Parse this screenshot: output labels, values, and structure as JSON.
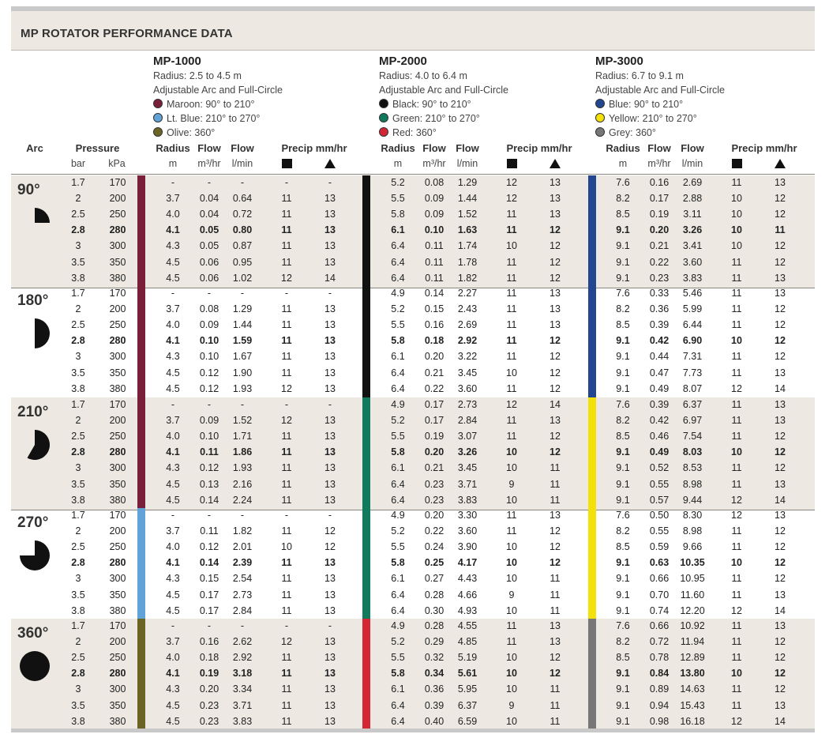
{
  "title": "MP ROTATOR PERFORMANCE DATA",
  "models": [
    {
      "name": "MP-1000",
      "radius": "Radius: 2.5 to 4.5 m",
      "arc": "Adjustable Arc and Full-Circle",
      "colors": [
        {
          "label": "Maroon: 90° to 210°",
          "hex": "#7a1f3a"
        },
        {
          "label": "Lt. Blue: 210° to 270°",
          "hex": "#5fa3d8"
        },
        {
          "label": "Olive: 360°",
          "hex": "#6b6425"
        }
      ]
    },
    {
      "name": "MP-2000",
      "radius": "Radius: 4.0 to 6.4 m",
      "arc": "Adjustable Arc and Full-Circle",
      "colors": [
        {
          "label": "Black: 90° to 210°",
          "hex": "#111111"
        },
        {
          "label": "Green: 210° to 270°",
          "hex": "#0f7a5c"
        },
        {
          "label": "Red: 360°",
          "hex": "#d42535"
        }
      ]
    },
    {
      "name": "MP-3000",
      "radius": "Radius: 6.7 to 9.1 m",
      "arc": "Adjustable Arc and Full-Circle",
      "colors": [
        {
          "label": "Blue: 90° to 210°",
          "hex": "#22468f"
        },
        {
          "label": "Yellow: 210° to 270°",
          "hex": "#f4e00a"
        },
        {
          "label": "Grey: 360°",
          "hex": "#777777"
        }
      ]
    }
  ],
  "headers": {
    "arc": "Arc",
    "pressure": "Pressure",
    "bar": "bar",
    "kpa": "kPa",
    "radius": "Radius",
    "radius_unit": "m",
    "flow": "Flow",
    "flow_m3_unit": "m³/hr",
    "flow_l_unit": "l/min",
    "precip": "Precip mm/hr"
  },
  "bar_colors": [
    [
      "#7a1f3a",
      "#111111",
      "#22468f"
    ],
    [
      "#7a1f3a",
      "#111111",
      "#22468f"
    ],
    [
      "#7a1f3a",
      "#0f7a5c",
      "#f4e00a"
    ],
    [
      "#5fa3d8",
      "#0f7a5c",
      "#f4e00a"
    ],
    [
      "#6b6425",
      "#d42535",
      "#777777"
    ]
  ],
  "pressures": [
    [
      "1.7",
      "170"
    ],
    [
      "2",
      "200"
    ],
    [
      "2.5",
      "250"
    ],
    [
      "2.8",
      "280"
    ],
    [
      "3",
      "300"
    ],
    [
      "3.5",
      "350"
    ],
    [
      "3.8",
      "380"
    ]
  ],
  "groups": [
    {
      "arc": "90°",
      "icon": "quarter-circle-icon",
      "rows": [
        [
          "-",
          "-",
          "-",
          "-",
          "-",
          "5.2",
          "0.08",
          "1.29",
          "12",
          "13",
          "7.6",
          "0.16",
          "2.69",
          "11",
          "13"
        ],
        [
          "3.7",
          "0.04",
          "0.64",
          "11",
          "13",
          "5.5",
          "0.09",
          "1.44",
          "12",
          "13",
          "8.2",
          "0.17",
          "2.88",
          "10",
          "12"
        ],
        [
          "4.0",
          "0.04",
          "0.72",
          "11",
          "13",
          "5.8",
          "0.09",
          "1.52",
          "11",
          "13",
          "8.5",
          "0.19",
          "3.11",
          "10",
          "12"
        ],
        [
          "4.1",
          "0.05",
          "0.80",
          "11",
          "13",
          "6.1",
          "0.10",
          "1.63",
          "11",
          "12",
          "9.1",
          "0.20",
          "3.26",
          "10",
          "11"
        ],
        [
          "4.3",
          "0.05",
          "0.87",
          "11",
          "13",
          "6.4",
          "0.11",
          "1.74",
          "10",
          "12",
          "9.1",
          "0.21",
          "3.41",
          "10",
          "12"
        ],
        [
          "4.5",
          "0.06",
          "0.95",
          "11",
          "13",
          "6.4",
          "0.11",
          "1.78",
          "11",
          "12",
          "9.1",
          "0.22",
          "3.60",
          "11",
          "12"
        ],
        [
          "4.5",
          "0.06",
          "1.02",
          "12",
          "14",
          "6.4",
          "0.11",
          "1.82",
          "11",
          "12",
          "9.1",
          "0.23",
          "3.83",
          "11",
          "13"
        ]
      ]
    },
    {
      "arc": "180°",
      "icon": "half-circle-icon",
      "rows": [
        [
          "-",
          "-",
          "-",
          "-",
          "-",
          "4.9",
          "0.14",
          "2.27",
          "11",
          "13",
          "7.6",
          "0.33",
          "5.46",
          "11",
          "13"
        ],
        [
          "3.7",
          "0.08",
          "1.29",
          "11",
          "13",
          "5.2",
          "0.15",
          "2.43",
          "11",
          "13",
          "8.2",
          "0.36",
          "5.99",
          "11",
          "12"
        ],
        [
          "4.0",
          "0.09",
          "1.44",
          "11",
          "13",
          "5.5",
          "0.16",
          "2.69",
          "11",
          "13",
          "8.5",
          "0.39",
          "6.44",
          "11",
          "12"
        ],
        [
          "4.1",
          "0.10",
          "1.59",
          "11",
          "13",
          "5.8",
          "0.18",
          "2.92",
          "11",
          "12",
          "9.1",
          "0.42",
          "6.90",
          "10",
          "12"
        ],
        [
          "4.3",
          "0.10",
          "1.67",
          "11",
          "13",
          "6.1",
          "0.20",
          "3.22",
          "11",
          "12",
          "9.1",
          "0.44",
          "7.31",
          "11",
          "12"
        ],
        [
          "4.5",
          "0.12",
          "1.90",
          "11",
          "13",
          "6.4",
          "0.21",
          "3.45",
          "10",
          "12",
          "9.1",
          "0.47",
          "7.73",
          "11",
          "13"
        ],
        [
          "4.5",
          "0.12",
          "1.93",
          "12",
          "13",
          "6.4",
          "0.22",
          "3.60",
          "11",
          "12",
          "9.1",
          "0.49",
          "8.07",
          "12",
          "14"
        ]
      ]
    },
    {
      "arc": "210°",
      "icon": "seven-twelfths-circle-icon",
      "rows": [
        [
          "-",
          "-",
          "-",
          "-",
          "-",
          "4.9",
          "0.17",
          "2.73",
          "12",
          "14",
          "7.6",
          "0.39",
          "6.37",
          "11",
          "13"
        ],
        [
          "3.7",
          "0.09",
          "1.52",
          "12",
          "13",
          "5.2",
          "0.17",
          "2.84",
          "11",
          "13",
          "8.2",
          "0.42",
          "6.97",
          "11",
          "13"
        ],
        [
          "4.0",
          "0.10",
          "1.71",
          "11",
          "13",
          "5.5",
          "0.19",
          "3.07",
          "11",
          "12",
          "8.5",
          "0.46",
          "7.54",
          "11",
          "12"
        ],
        [
          "4.1",
          "0.11",
          "1.86",
          "11",
          "13",
          "5.8",
          "0.20",
          "3.26",
          "10",
          "12",
          "9.1",
          "0.49",
          "8.03",
          "10",
          "12"
        ],
        [
          "4.3",
          "0.12",
          "1.93",
          "11",
          "13",
          "6.1",
          "0.21",
          "3.45",
          "10",
          "11",
          "9.1",
          "0.52",
          "8.53",
          "11",
          "12"
        ],
        [
          "4.5",
          "0.13",
          "2.16",
          "11",
          "13",
          "6.4",
          "0.23",
          "3.71",
          "9",
          "11",
          "9.1",
          "0.55",
          "8.98",
          "11",
          "13"
        ],
        [
          "4.5",
          "0.14",
          "2.24",
          "11",
          "13",
          "6.4",
          "0.23",
          "3.83",
          "10",
          "11",
          "9.1",
          "0.57",
          "9.44",
          "12",
          "14"
        ]
      ]
    },
    {
      "arc": "270°",
      "icon": "three-quarter-circle-icon",
      "rows": [
        [
          "-",
          "-",
          "-",
          "-",
          "-",
          "4.9",
          "0.20",
          "3.30",
          "11",
          "13",
          "7.6",
          "0.50",
          "8.30",
          "12",
          "13"
        ],
        [
          "3.7",
          "0.11",
          "1.82",
          "11",
          "12",
          "5.2",
          "0.22",
          "3.60",
          "11",
          "12",
          "8.2",
          "0.55",
          "8.98",
          "11",
          "12"
        ],
        [
          "4.0",
          "0.12",
          "2.01",
          "10",
          "12",
          "5.5",
          "0.24",
          "3.90",
          "10",
          "12",
          "8.5",
          "0.59",
          "9.66",
          "11",
          "12"
        ],
        [
          "4.1",
          "0.14",
          "2.39",
          "11",
          "13",
          "5.8",
          "0.25",
          "4.17",
          "10",
          "12",
          "9.1",
          "0.63",
          "10.35",
          "10",
          "12"
        ],
        [
          "4.3",
          "0.15",
          "2.54",
          "11",
          "13",
          "6.1",
          "0.27",
          "4.43",
          "10",
          "11",
          "9.1",
          "0.66",
          "10.95",
          "11",
          "12"
        ],
        [
          "4.5",
          "0.17",
          "2.73",
          "11",
          "13",
          "6.4",
          "0.28",
          "4.66",
          "9",
          "11",
          "9.1",
          "0.70",
          "11.60",
          "11",
          "13"
        ],
        [
          "4.5",
          "0.17",
          "2.84",
          "11",
          "13",
          "6.4",
          "0.30",
          "4.93",
          "10",
          "11",
          "9.1",
          "0.74",
          "12.20",
          "12",
          "14"
        ]
      ]
    },
    {
      "arc": "360°",
      "icon": "full-circle-icon",
      "rows": [
        [
          "-",
          "-",
          "-",
          "-",
          "-",
          "4.9",
          "0.28",
          "4.55",
          "11",
          "13",
          "7.6",
          "0.66",
          "10.92",
          "11",
          "13"
        ],
        [
          "3.7",
          "0.16",
          "2.62",
          "12",
          "13",
          "5.2",
          "0.29",
          "4.85",
          "11",
          "13",
          "8.2",
          "0.72",
          "11.94",
          "11",
          "12"
        ],
        [
          "4.0",
          "0.18",
          "2.92",
          "11",
          "13",
          "5.5",
          "0.32",
          "5.19",
          "10",
          "12",
          "8.5",
          "0.78",
          "12.89",
          "11",
          "12"
        ],
        [
          "4.1",
          "0.19",
          "3.18",
          "11",
          "13",
          "5.8",
          "0.34",
          "5.61",
          "10",
          "12",
          "9.1",
          "0.84",
          "13.80",
          "10",
          "12"
        ],
        [
          "4.3",
          "0.20",
          "3.34",
          "11",
          "13",
          "6.1",
          "0.36",
          "5.95",
          "10",
          "11",
          "9.1",
          "0.89",
          "14.63",
          "11",
          "12"
        ],
        [
          "4.5",
          "0.23",
          "3.71",
          "11",
          "13",
          "6.4",
          "0.39",
          "6.37",
          "9",
          "11",
          "9.1",
          "0.94",
          "15.43",
          "11",
          "13"
        ],
        [
          "4.5",
          "0.23",
          "3.83",
          "11",
          "13",
          "6.4",
          "0.40",
          "6.59",
          "10",
          "11",
          "9.1",
          "0.98",
          "16.18",
          "12",
          "14"
        ]
      ]
    }
  ]
}
